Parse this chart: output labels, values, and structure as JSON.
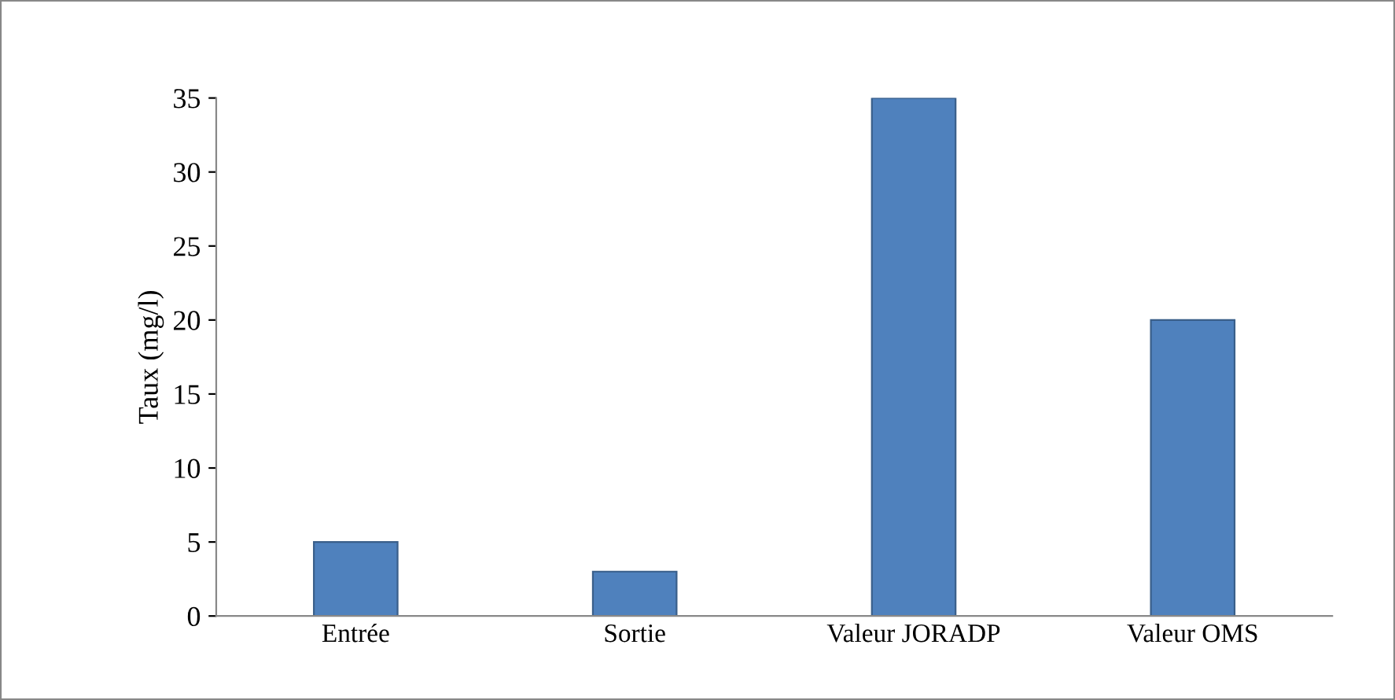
{
  "chart_data": {
    "type": "bar",
    "ylabel": "Taux (mg/l)",
    "categories": [
      "Entrée",
      "Sortie",
      "Valeur JORADP",
      "Valeur OMS"
    ],
    "values": [
      5,
      3,
      35,
      20
    ],
    "color": "#4f81bd",
    "ylim": [
      0,
      35
    ],
    "yticks": [
      0,
      5,
      10,
      15,
      20,
      25,
      30,
      35
    ],
    "grid": false,
    "legend": false
  }
}
